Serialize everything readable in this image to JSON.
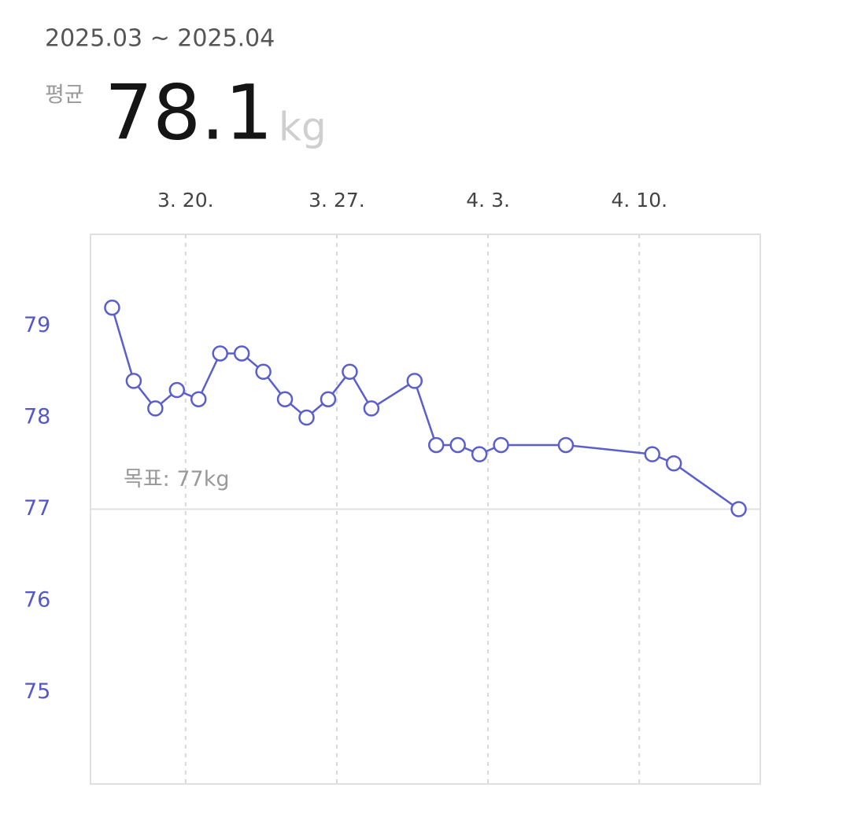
{
  "header": {
    "period": "2025.03 ~ 2025.04",
    "average_label": "평균",
    "average": 78.1,
    "unit": "kg"
  },
  "chart_data": {
    "type": "line",
    "x": [
      16,
      17,
      18,
      19,
      20,
      21,
      22,
      23,
      24,
      25,
      26,
      27,
      28,
      30,
      31,
      32,
      33,
      34,
      37,
      41,
      42,
      45
    ],
    "series": [
      {
        "color": "#5a5fcc",
        "values": [
          79.2,
          78.4,
          78.1,
          78.3,
          78.2,
          78.7,
          78.7,
          78.5,
          78.2,
          78.0,
          78.2,
          78.5,
          78.1,
          78.4,
          77.7,
          77.7,
          77.6,
          77.7,
          77.7,
          77.6,
          77.5,
          77.0
        ]
      }
    ],
    "xlim": [
      15,
      46
    ],
    "xticks": [
      {
        "value": 19.4,
        "label": "3. 20."
      },
      {
        "value": 26.4,
        "label": "3. 27."
      },
      {
        "value": 33.4,
        "label": "4. 3."
      },
      {
        "value": 40.4,
        "label": "4. 10."
      }
    ],
    "ylim": [
      74,
      80
    ],
    "yticks": [
      75,
      76,
      77,
      78,
      79
    ],
    "goal": {
      "value": 77,
      "label": "목표: 77kg"
    },
    "grid": true
  }
}
